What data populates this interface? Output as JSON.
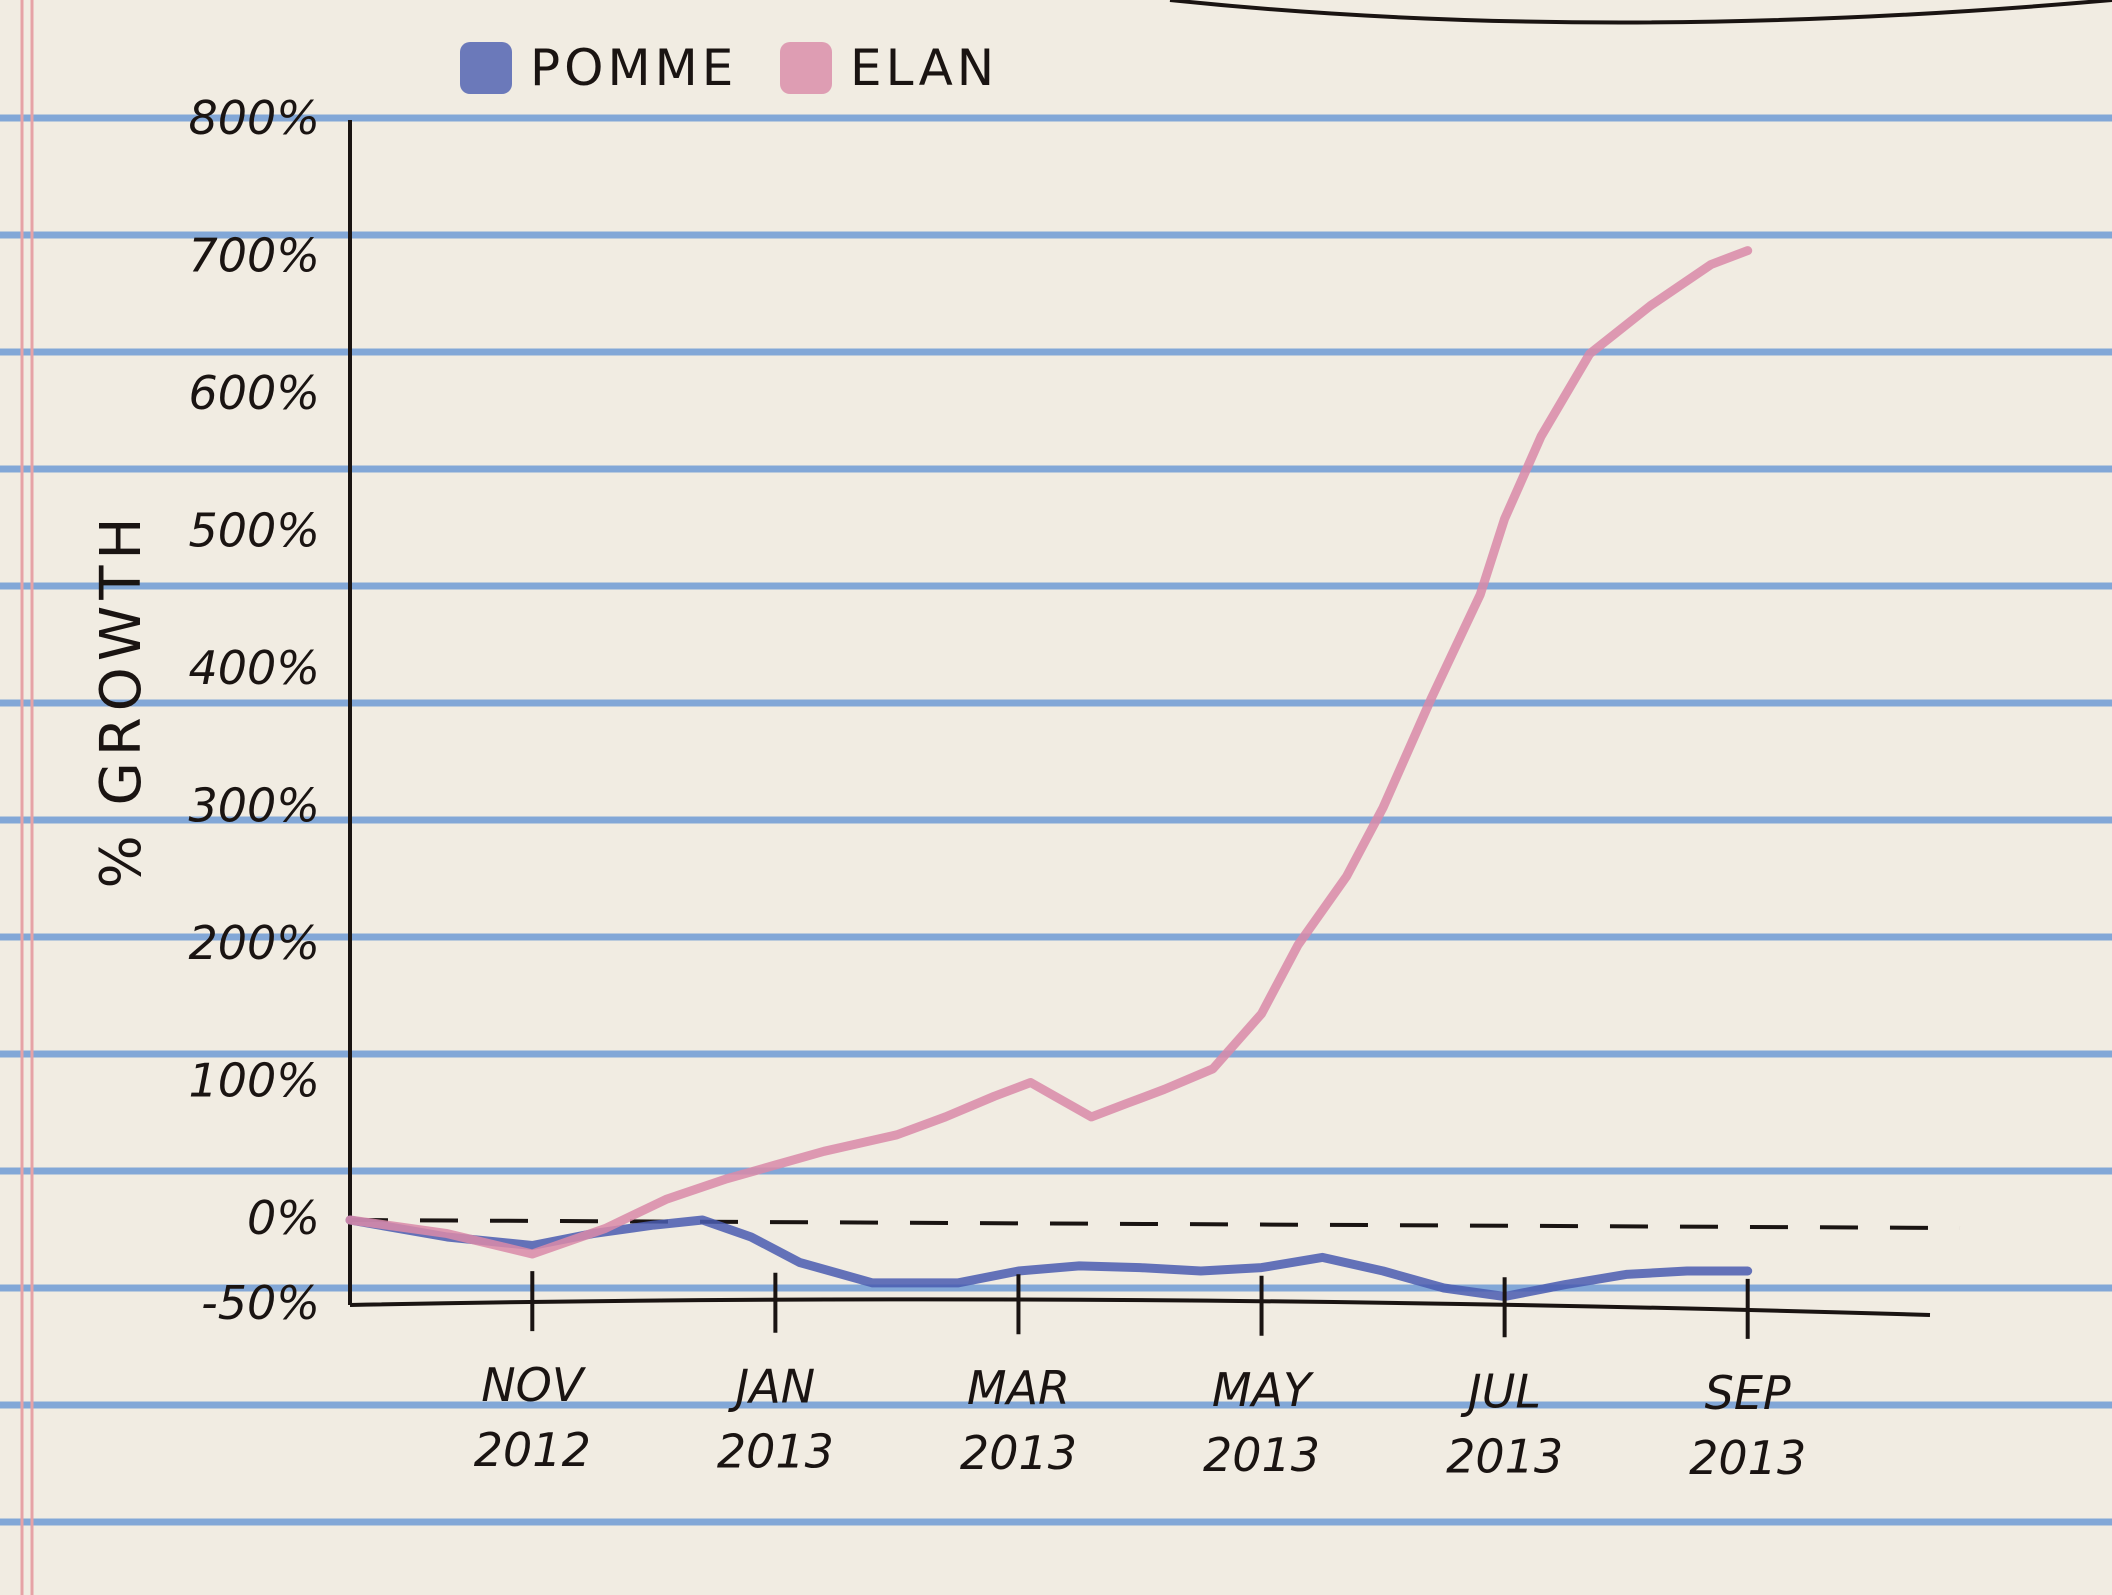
{
  "chart_data": {
    "type": "line",
    "title": "",
    "xlabel": "",
    "ylabel": "% GROWTH",
    "ylim": [
      -50,
      800
    ],
    "yticks": [
      {
        "value": 800,
        "label": "800%"
      },
      {
        "value": 700,
        "label": "700%"
      },
      {
        "value": 600,
        "label": "600%"
      },
      {
        "value": 500,
        "label": "500%"
      },
      {
        "value": 400,
        "label": "400%"
      },
      {
        "value": 300,
        "label": "300%"
      },
      {
        "value": 200,
        "label": "200%"
      },
      {
        "value": 100,
        "label": "100%"
      },
      {
        "value": 0,
        "label": "0%"
      },
      {
        "value": -50,
        "label": "-50%"
      }
    ],
    "xticks": [
      {
        "month": 2,
        "line1": "NOV",
        "line2": "2012"
      },
      {
        "month": 4,
        "line1": "JAN",
        "line2": "2013"
      },
      {
        "month": 6,
        "line1": "MAR",
        "line2": "2013"
      },
      {
        "month": 8,
        "line1": "MAY",
        "line2": "2013"
      },
      {
        "month": 10,
        "line1": "JUL",
        "line2": "2013"
      },
      {
        "month": 12,
        "line1": "SEP",
        "line2": "2013"
      }
    ],
    "xlim": [
      0.5,
      13.5
    ],
    "baseline": {
      "value": 0,
      "style": "dashed"
    },
    "legend": {
      "placement": "top"
    },
    "series": [
      {
        "name": "POMME",
        "color": "#4a5cb0",
        "points": [
          [
            0.5,
            0
          ],
          [
            1.3,
            -10
          ],
          [
            2.0,
            -15
          ],
          [
            2.5,
            -8
          ],
          [
            3.0,
            -3
          ],
          [
            3.4,
            0
          ],
          [
            3.8,
            -10
          ],
          [
            4.2,
            -25
          ],
          [
            4.8,
            -37
          ],
          [
            5.5,
            -37
          ],
          [
            6.0,
            -30
          ],
          [
            6.5,
            -27
          ],
          [
            7.0,
            -28
          ],
          [
            7.5,
            -30
          ],
          [
            8.0,
            -28
          ],
          [
            8.5,
            -22
          ],
          [
            9.0,
            -30
          ],
          [
            9.5,
            -40
          ],
          [
            10.0,
            -45
          ],
          [
            10.5,
            -38
          ],
          [
            11.0,
            -32
          ],
          [
            11.5,
            -30
          ],
          [
            12.0,
            -30
          ]
        ]
      },
      {
        "name": "ELAN",
        "color": "#d98aa8",
        "points": [
          [
            0.5,
            0
          ],
          [
            1.3,
            -8
          ],
          [
            2.0,
            -20
          ],
          [
            2.6,
            -5
          ],
          [
            3.1,
            15
          ],
          [
            3.6,
            30
          ],
          [
            4.0,
            40
          ],
          [
            4.4,
            50
          ],
          [
            5.0,
            62
          ],
          [
            5.4,
            75
          ],
          [
            5.8,
            90
          ],
          [
            6.1,
            100
          ],
          [
            6.3,
            90
          ],
          [
            6.6,
            75
          ],
          [
            6.9,
            85
          ],
          [
            7.2,
            95
          ],
          [
            7.6,
            110
          ],
          [
            8.0,
            150
          ],
          [
            8.3,
            200
          ],
          [
            8.7,
            250
          ],
          [
            9.0,
            300
          ],
          [
            9.4,
            380
          ],
          [
            9.8,
            455
          ],
          [
            10.0,
            510
          ],
          [
            10.3,
            570
          ],
          [
            10.7,
            630
          ],
          [
            11.2,
            665
          ],
          [
            11.7,
            695
          ],
          [
            12.0,
            705
          ]
        ]
      }
    ]
  }
}
